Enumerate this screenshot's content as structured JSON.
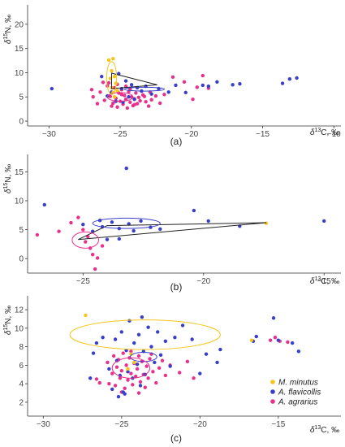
{
  "legend": {
    "placement": "bottom-right",
    "entries": [
      {
        "name": "M. minutus",
        "color": "#f5c518"
      },
      {
        "name": "A. flavicollis",
        "color": "#3a3fc8"
      },
      {
        "name": "A. agrarius",
        "color": "#e8308c"
      }
    ]
  },
  "chart_data": [
    {
      "type": "scatter",
      "panel_label": "(a)",
      "xlabel": "δ13C, ‰",
      "ylabel": "δ15N, ‰",
      "xlim": [
        -31.5,
        -9.5
      ],
      "ylim": [
        -1,
        24
      ],
      "xticks": [
        -30,
        -25,
        -20,
        -15,
        -10
      ],
      "yticks": [
        0,
        5,
        10,
        15,
        20
      ],
      "grid": false,
      "series": [
        {
          "name": "M. minutus",
          "color": "#f5c518",
          "points": [
            [
              -25.8,
              12.6
            ],
            [
              -25.5,
              12.9
            ],
            [
              -25.6,
              10.4
            ],
            [
              -25.4,
              9.2
            ],
            [
              -25.7,
              8.8
            ],
            [
              -25.3,
              7.8
            ],
            [
              -25.6,
              6.9
            ],
            [
              -25.5,
              5.9
            ],
            [
              -25.2,
              6.3
            ],
            [
              -25.4,
              5.0
            ]
          ]
        },
        {
          "name": "A. flavicollis",
          "color": "#3a3fc8",
          "points": [
            [
              -29.8,
              6.7
            ],
            [
              -26.3,
              9.2
            ],
            [
              -25.1,
              9.8
            ],
            [
              -24.6,
              8.3
            ],
            [
              -24.2,
              7.5
            ],
            [
              -23.8,
              6.9
            ],
            [
              -23.5,
              6.2
            ],
            [
              -23.2,
              7.2
            ],
            [
              -22.8,
              5.6
            ],
            [
              -22.3,
              6.7
            ],
            [
              -21.6,
              6.0
            ],
            [
              -21.1,
              7.4
            ],
            [
              -20.4,
              5.9
            ],
            [
              -19.2,
              7.4
            ],
            [
              -18.8,
              7.2
            ],
            [
              -18.2,
              8.1
            ],
            [
              -17.1,
              7.5
            ],
            [
              -16.6,
              7.7
            ],
            [
              -13.6,
              7.8
            ],
            [
              -13.1,
              8.7
            ],
            [
              -12.6,
              8.9
            ],
            [
              -25.9,
              5.2
            ],
            [
              -25.3,
              4.1
            ],
            [
              -24.9,
              6.7
            ],
            [
              -24.4,
              5.0
            ],
            [
              -24.0,
              4.5
            ],
            [
              -25.6,
              6.0
            ],
            [
              -24.8,
              3.9
            ]
          ],
          "ellipse": {
            "cx": -23.3,
            "cy": 6.6,
            "rx": 1.4,
            "ry": 0.4
          }
        },
        {
          "name": "A. agrarius",
          "color": "#e8308c",
          "points": [
            [
              -27.0,
              6.5
            ],
            [
              -26.9,
              5.0
            ],
            [
              -26.6,
              3.6
            ],
            [
              -26.4,
              6.0
            ],
            [
              -26.1,
              4.3
            ],
            [
              -25.9,
              7.3
            ],
            [
              -25.7,
              5.1
            ],
            [
              -25.6,
              3.1
            ],
            [
              -25.4,
              6.9
            ],
            [
              -25.3,
              4.7
            ],
            [
              -25.2,
              2.9
            ],
            [
              -25.1,
              5.8
            ],
            [
              -25.0,
              4.1
            ],
            [
              -24.9,
              6.5
            ],
            [
              -24.8,
              3.5
            ],
            [
              -24.7,
              5.3
            ],
            [
              -24.6,
              4.5
            ],
            [
              -24.5,
              2.7
            ],
            [
              -24.4,
              6.1
            ],
            [
              -24.3,
              3.9
            ],
            [
              -24.2,
              5.0
            ],
            [
              -24.1,
              3.2
            ],
            [
              -24.0,
              4.6
            ],
            [
              -23.9,
              5.8
            ],
            [
              -23.8,
              3.6
            ],
            [
              -23.7,
              4.9
            ],
            [
              -23.6,
              4.2
            ],
            [
              -23.4,
              5.4
            ],
            [
              -23.2,
              4.0
            ],
            [
              -23.0,
              3.1
            ],
            [
              -22.8,
              4.4
            ],
            [
              -22.5,
              5.2
            ],
            [
              -22.2,
              3.7
            ],
            [
              -21.9,
              5.5
            ],
            [
              -21.3,
              9.1
            ],
            [
              -20.5,
              8.1
            ],
            [
              -19.9,
              4.5
            ],
            [
              -19.6,
              7.0
            ],
            [
              -19.2,
              9.4
            ],
            [
              -18.8,
              6.8
            ],
            [
              -26.2,
              8.0
            ],
            [
              -25.8,
              7.9
            ],
            [
              -25.5,
              3.7
            ],
            [
              -25.2,
              7.6
            ],
            [
              -24.9,
              5.5
            ],
            [
              -24.6,
              7.2
            ],
            [
              -24.3,
              6.7
            ],
            [
              -24.0,
              3.4
            ],
            [
              -23.5,
              6.2
            ],
            [
              -23.3,
              5.1
            ],
            [
              -22.9,
              6.0
            ]
          ],
          "ellipse": {
            "cx": -25.0,
            "cy": 5.0,
            "rx": 0.9,
            "ry": 0.9
          }
        }
      ],
      "hulls": [
        {
          "color": "#222222",
          "points": [
            [
              -25.6,
              9.9
            ],
            [
              -22.4,
              7.5
            ],
            [
              -25.6,
              6.7
            ]
          ]
        }
      ],
      "extra_ellipses": [
        {
          "color": "#f5c518",
          "cx": -25.6,
          "cy": 8.9,
          "rx": 0.35,
          "ry": 3.4
        }
      ]
    },
    {
      "type": "scatter",
      "panel_label": "(b)",
      "xlabel": "δ13C, ‰",
      "ylabel": "δ15N, ‰",
      "xlim": [
        -27.3,
        -14.3
      ],
      "ylim": [
        -2.5,
        18
      ],
      "xticks": [
        -25,
        -20,
        -15
      ],
      "yticks": [
        0,
        5,
        10,
        15
      ],
      "grid": false,
      "series": [
        {
          "name": "M. minutus",
          "color": "#f5c518",
          "points": [
            [
              -17.4,
              6.1
            ]
          ]
        },
        {
          "name": "A. flavicollis",
          "color": "#3a3fc8",
          "points": [
            [
              -26.6,
              9.3
            ],
            [
              -23.2,
              15.6
            ],
            [
              -25.0,
              5.9
            ],
            [
              -24.6,
              4.7
            ],
            [
              -24.2,
              5.5
            ],
            [
              -24.0,
              3.3
            ],
            [
              -23.8,
              6.3
            ],
            [
              -23.5,
              5.2
            ],
            [
              -23.1,
              6.0
            ],
            [
              -22.9,
              4.8
            ],
            [
              -22.6,
              6.5
            ],
            [
              -22.2,
              5.4
            ],
            [
              -21.8,
              5.1
            ],
            [
              -20.4,
              8.3
            ],
            [
              -19.8,
              6.5
            ],
            [
              -18.5,
              5.6
            ],
            [
              -15.0,
              6.5
            ],
            [
              -23.5,
              3.4
            ],
            [
              -24.3,
              6.6
            ]
          ],
          "ellipse": {
            "cx": -23.2,
            "cy": 6.1,
            "rx": 1.4,
            "ry": 0.9
          }
        },
        {
          "name": "A. agrarius",
          "color": "#e8308c",
          "points": [
            [
              -26.9,
              4.1
            ],
            [
              -26.0,
              4.7
            ],
            [
              -25.5,
              6.2
            ],
            [
              -25.2,
              7.1
            ],
            [
              -25.0,
              5.0
            ],
            [
              -24.9,
              2.9
            ],
            [
              -24.7,
              1.8
            ],
            [
              -24.6,
              0.7
            ],
            [
              -24.5,
              -1.8
            ],
            [
              -24.4,
              0.1
            ],
            [
              -24.8,
              3.8
            ],
            [
              -24.2,
              2.2
            ]
          ],
          "ellipse": {
            "cx": -24.9,
            "cy": 3.2,
            "rx": 0.55,
            "ry": 1.4
          }
        }
      ],
      "hulls": [
        {
          "color": "#222222",
          "points": [
            [
              -24.0,
              5.7
            ],
            [
              -17.4,
              6.2
            ],
            [
              -25.2,
              3.3
            ]
          ]
        }
      ],
      "extra_ellipses": []
    },
    {
      "type": "scatter",
      "panel_label": "(c)",
      "xlabel": "δ13C, ‰",
      "ylabel": "δ15N, ‰",
      "xlim": [
        -31,
        -11
      ],
      "ylim": [
        0.5,
        13.5
      ],
      "xticks": [
        -30,
        -25,
        -20,
        -15
      ],
      "yticks": [
        2,
        4,
        6,
        8,
        10,
        12
      ],
      "grid": false,
      "series": [
        {
          "name": "M. minutus",
          "color": "#f5c518",
          "points": [
            [
              -27.3,
              11.4
            ],
            [
              -16.7,
              8.7
            ],
            [
              -24.4,
              7.2
            ],
            [
              -24.2,
              6.3
            ],
            [
              -24.6,
              5.6
            ]
          ],
          "ellipse": {
            "cx": -23.5,
            "cy": 9.3,
            "rx": 4.8,
            "ry": 1.6
          }
        },
        {
          "name": "A. flavicollis",
          "color": "#3a3fc8",
          "points": [
            [
              -27.0,
              4.6
            ],
            [
              -26.8,
              7.3
            ],
            [
              -26.6,
              8.4
            ],
            [
              -26.2,
              9.0
            ],
            [
              -25.8,
              5.6
            ],
            [
              -25.6,
              3.4
            ],
            [
              -25.4,
              8.8
            ],
            [
              -25.3,
              6.5
            ],
            [
              -25.1,
              4.9
            ],
            [
              -25.0,
              9.6
            ],
            [
              -24.9,
              3.1
            ],
            [
              -24.7,
              7.6
            ],
            [
              -24.6,
              5.3
            ],
            [
              -24.5,
              10.8
            ],
            [
              -24.3,
              4.6
            ],
            [
              -24.2,
              8.4
            ],
            [
              -24.0,
              6.1
            ],
            [
              -23.9,
              9.3
            ],
            [
              -23.8,
              3.8
            ],
            [
              -23.6,
              7.5
            ],
            [
              -23.5,
              5.0
            ],
            [
              -23.3,
              10.1
            ],
            [
              -23.1,
              8.0
            ],
            [
              -22.9,
              6.3
            ],
            [
              -22.7,
              9.6
            ],
            [
              -22.5,
              7.1
            ],
            [
              -22.2,
              8.6
            ],
            [
              -21.9,
              5.9
            ],
            [
              -21.6,
              9.0
            ],
            [
              -21.1,
              10.3
            ],
            [
              -20.5,
              8.8
            ],
            [
              -20.0,
              5.1
            ],
            [
              -19.6,
              7.2
            ],
            [
              -18.9,
              6.3
            ],
            [
              -18.7,
              7.7
            ],
            [
              -16.6,
              8.6
            ],
            [
              -16.4,
              9.1
            ],
            [
              -15.3,
              11.1
            ],
            [
              -15.0,
              8.7
            ],
            [
              -14.1,
              8.4
            ],
            [
              -13.7,
              7.5
            ],
            [
              -25.2,
              2.6
            ],
            [
              -24.8,
              2.9
            ],
            [
              -23.7,
              11.2
            ]
          ],
          "ellipse": {
            "cx": -23.6,
            "cy": 6.9,
            "rx": 0.85,
            "ry": 0.5
          }
        },
        {
          "name": "A. agrarius",
          "color": "#e8308c",
          "points": [
            [
              -26.6,
              4.5
            ],
            [
              -26.4,
              4.1
            ],
            [
              -25.9,
              6.3
            ],
            [
              -25.8,
              4.0
            ],
            [
              -25.6,
              5.1
            ],
            [
              -25.5,
              7.0
            ],
            [
              -25.4,
              3.8
            ],
            [
              -25.3,
              5.8
            ],
            [
              -25.2,
              6.6
            ],
            [
              -25.1,
              4.6
            ],
            [
              -25.0,
              5.4
            ],
            [
              -24.9,
              7.3
            ],
            [
              -24.8,
              3.5
            ],
            [
              -24.7,
              6.0
            ],
            [
              -24.6,
              4.4
            ],
            [
              -24.5,
              6.8
            ],
            [
              -24.4,
              5.1
            ],
            [
              -24.3,
              3.9
            ],
            [
              -24.2,
              6.2
            ],
            [
              -24.1,
              4.8
            ],
            [
              -24.0,
              5.6
            ],
            [
              -23.9,
              7.0
            ],
            [
              -23.8,
              4.2
            ],
            [
              -23.7,
              6.4
            ],
            [
              -23.6,
              5.0
            ],
            [
              -23.5,
              3.6
            ],
            [
              -23.4,
              5.9
            ],
            [
              -23.3,
              4.6
            ],
            [
              -23.2,
              6.7
            ],
            [
              -23.0,
              5.3
            ],
            [
              -22.8,
              4.1
            ],
            [
              -22.6,
              5.7
            ],
            [
              -22.4,
              6.5
            ],
            [
              -22.2,
              4.9
            ],
            [
              -21.9,
              6.0
            ],
            [
              -21.3,
              5.2
            ],
            [
              -20.8,
              6.4
            ],
            [
              -20.4,
              4.6
            ],
            [
              -15.5,
              8.7
            ],
            [
              -15.2,
              9.0
            ],
            [
              -14.9,
              8.6
            ],
            [
              -14.4,
              8.5
            ],
            [
              -25.0,
              3.1
            ],
            [
              -24.4,
              7.5
            ],
            [
              -23.9,
              3.0
            ],
            [
              -23.1,
              7.2
            ]
          ],
          "ellipse": {
            "cx": -24.4,
            "cy": 5.7,
            "rx": 1.2,
            "ry": 1.1
          }
        }
      ],
      "hulls": [],
      "extra_ellipses": []
    }
  ]
}
